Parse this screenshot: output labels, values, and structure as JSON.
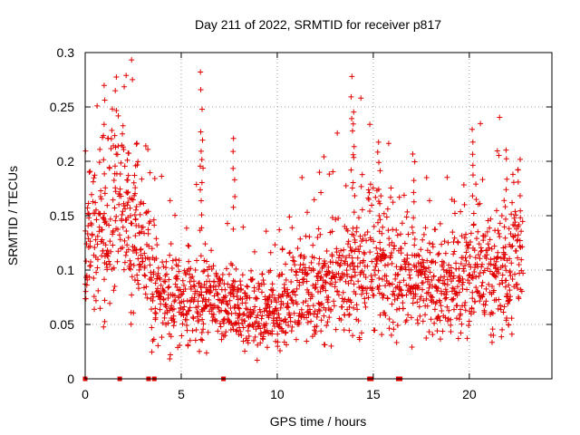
{
  "chart_data": {
    "type": "scatter",
    "title": "Day 211 of 2022, SRMTID for receiver p817",
    "xlabel": "GPS time / hours",
    "ylabel": "SRMTID / TECUs",
    "xlim": [
      0,
      24.3
    ],
    "ylim": [
      0,
      0.3
    ],
    "x_ticks": [
      0,
      5,
      10,
      15,
      20
    ],
    "x_tick_labels": [
      "0",
      "5",
      "10",
      "15",
      "20"
    ],
    "y_ticks": [
      0,
      0.05,
      0.1,
      0.15,
      0.2,
      0.25,
      0.3
    ],
    "y_tick_labels": [
      "0",
      "0.05",
      "0.1",
      "0.15",
      "0.2",
      "0.25",
      "0.3"
    ],
    "grid": true,
    "marker": "+",
    "color": "#e00000",
    "trend": [
      {
        "x": 0.0,
        "y": 0.12
      },
      {
        "x": 1.0,
        "y": 0.14
      },
      {
        "x": 2.0,
        "y": 0.16
      },
      {
        "x": 3.0,
        "y": 0.11
      },
      {
        "x": 4.0,
        "y": 0.075
      },
      {
        "x": 5.0,
        "y": 0.07
      },
      {
        "x": 6.0,
        "y": 0.075
      },
      {
        "x": 7.0,
        "y": 0.065
      },
      {
        "x": 8.0,
        "y": 0.065
      },
      {
        "x": 9.0,
        "y": 0.055
      },
      {
        "x": 10.0,
        "y": 0.06
      },
      {
        "x": 11.0,
        "y": 0.08
      },
      {
        "x": 12.0,
        "y": 0.085
      },
      {
        "x": 13.0,
        "y": 0.09
      },
      {
        "x": 14.0,
        "y": 0.1
      },
      {
        "x": 15.0,
        "y": 0.11
      },
      {
        "x": 16.0,
        "y": 0.1
      },
      {
        "x": 17.0,
        "y": 0.09
      },
      {
        "x": 18.0,
        "y": 0.085
      },
      {
        "x": 19.0,
        "y": 0.085
      },
      {
        "x": 20.0,
        "y": 0.1
      },
      {
        "x": 21.0,
        "y": 0.095
      },
      {
        "x": 22.0,
        "y": 0.1
      },
      {
        "x": 22.8,
        "y": 0.12
      }
    ],
    "spikes": [
      {
        "x": 1.6,
        "y": 0.282
      },
      {
        "x": 1.0,
        "y": 0.275
      },
      {
        "x": 2.2,
        "y": 0.215
      },
      {
        "x": 2.6,
        "y": 0.2
      },
      {
        "x": 6.05,
        "y": 0.285
      },
      {
        "x": 6.1,
        "y": 0.225
      },
      {
        "x": 7.75,
        "y": 0.23
      },
      {
        "x": 13.9,
        "y": 0.28
      },
      {
        "x": 14.0,
        "y": 0.25
      },
      {
        "x": 15.3,
        "y": 0.22
      },
      {
        "x": 17.1,
        "y": 0.215
      },
      {
        "x": 20.2,
        "y": 0.23
      },
      {
        "x": 21.9,
        "y": 0.217
      },
      {
        "x": 22.6,
        "y": 0.208
      }
    ],
    "zero_points": [
      0.0,
      1.8,
      3.3,
      3.6,
      7.2,
      14.8,
      14.9,
      16.3,
      16.4
    ]
  }
}
